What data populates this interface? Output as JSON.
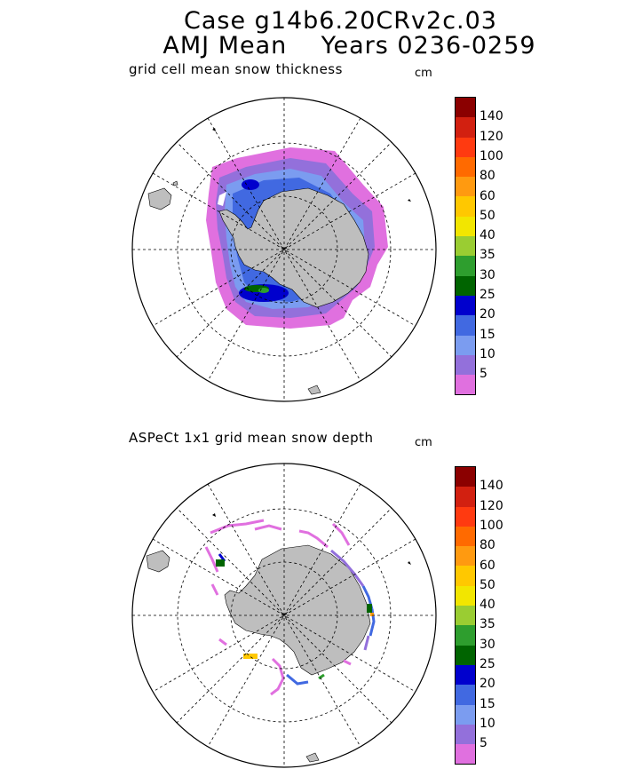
{
  "title": {
    "line1": "Case g14b6.20CRv2c.03",
    "line2": "AMJ Mean    Years 0236-0259"
  },
  "panels": [
    {
      "title": "grid cell mean snow thickness",
      "units": "cm"
    },
    {
      "title": "ASPeCt 1x1 grid mean snow depth",
      "units": "cm"
    }
  ],
  "colorbar": {
    "labels": [
      "140",
      "120",
      "100",
      "80",
      "60",
      "50",
      "40",
      "35",
      "30",
      "25",
      "20",
      "15",
      "10",
      "5"
    ],
    "colors": [
      "#8B0000",
      "#D22010",
      "#FF3A10",
      "#FF6A00",
      "#FF9A10",
      "#FFC800",
      "#F2E600",
      "#9ACD32",
      "#2E9E2E",
      "#006400",
      "#0000CD",
      "#4169E1",
      "#7B9CF0",
      "#9370DB",
      "#E070DF"
    ]
  },
  "colors": {
    "land": "#BEBEBE",
    "ocean": "#FFFFFF",
    "grid": "#000000"
  }
}
